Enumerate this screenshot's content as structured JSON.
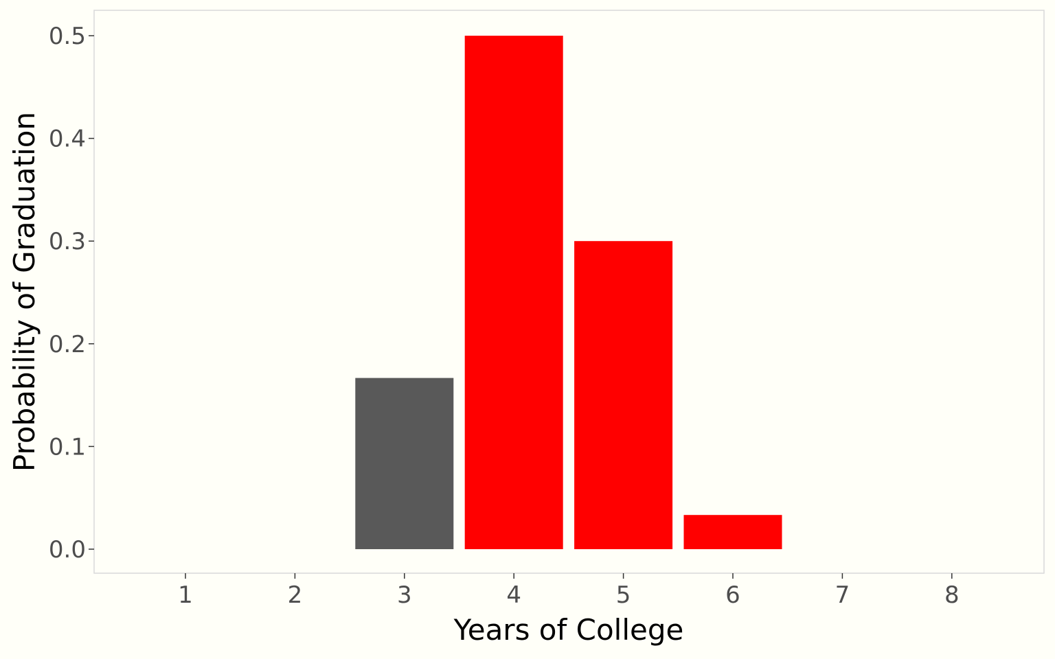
{
  "chart_data": {
    "type": "bar",
    "title": "",
    "xlabel": "Years of College",
    "ylabel": "Probability of Graduation",
    "categories": [
      "1",
      "2",
      "3",
      "4",
      "5",
      "6",
      "7",
      "8"
    ],
    "values": [
      0,
      0,
      0.1667,
      0.5,
      0.3,
      0.0333,
      0,
      0
    ],
    "bar_colors": [
      "#595959",
      "#595959",
      "#595959",
      "#ff0000",
      "#ff0000",
      "#ff0000",
      "#595959",
      "#595959"
    ],
    "ylim": [
      0,
      0.5
    ],
    "yticks": [
      "0.0",
      "0.1",
      "0.2",
      "0.3",
      "0.4",
      "0.5"
    ],
    "grid": false,
    "legend": "none",
    "background_color": "#fffff8",
    "panel_border_color": "#d9d9d9"
  }
}
